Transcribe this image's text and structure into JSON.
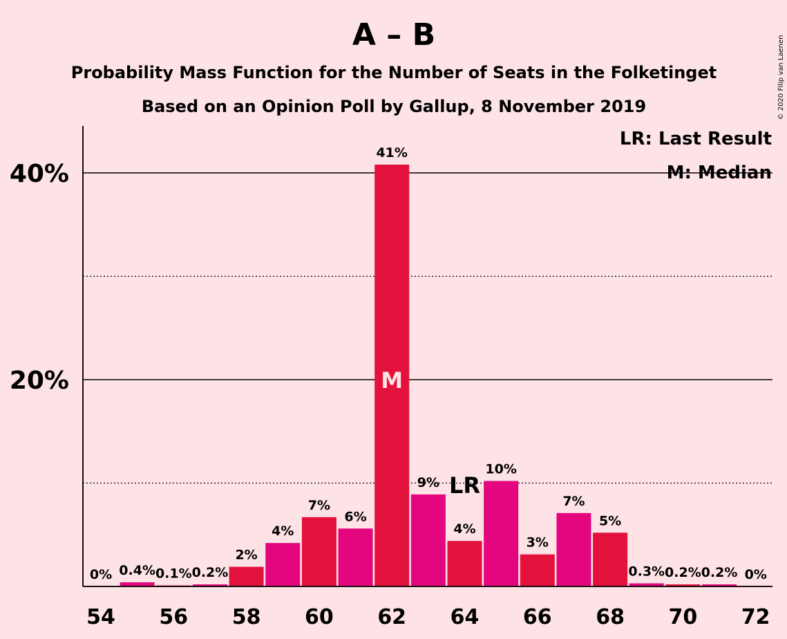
{
  "chart_data": {
    "type": "bar",
    "title": "A – B",
    "subtitle_line1": "Probability Mass Function for the Number of Seats in the Folketinget",
    "subtitle_line2": "Based on an Opinion Poll by Gallup, 8 November 2019",
    "copyright": "© 2020 Filip van Laenen",
    "legend": {
      "last_result": "LR: Last Result",
      "median": "M: Median",
      "placement": "top-right"
    },
    "x": [
      54,
      55,
      56,
      57,
      58,
      59,
      60,
      61,
      62,
      63,
      64,
      65,
      66,
      67,
      68,
      69,
      70,
      71,
      72
    ],
    "values": [
      0,
      0.4,
      0.1,
      0.2,
      1.9,
      4.2,
      6.7,
      5.6,
      40.8,
      8.9,
      4.4,
      10.2,
      3.1,
      7.1,
      5.2,
      0.3,
      0.2,
      0.2,
      0
    ],
    "data_labels": [
      "0%",
      "0.4%",
      "0.1%",
      "0.2%",
      "2%",
      "4%",
      "7%",
      "6%",
      "41%",
      "9%",
      "4%",
      "10%",
      "3%",
      "7%",
      "5%",
      "0.3%",
      "0.2%",
      "0.2%",
      "0%"
    ],
    "x_tick_labels": [
      "54",
      "56",
      "58",
      "60",
      "62",
      "64",
      "66",
      "68",
      "70",
      "72"
    ],
    "x_tick_values": [
      54,
      56,
      58,
      60,
      62,
      64,
      66,
      68,
      70,
      72
    ],
    "y_tick_labels": [
      "20%",
      "40%"
    ],
    "y_tick_values": [
      20,
      40
    ],
    "y_minor_gridlines": [
      10,
      30
    ],
    "ylim": [
      0,
      44.5
    ],
    "median_seat": 62,
    "median_marker": "M",
    "last_result_seat": 64,
    "last_result_marker": "LR",
    "colors": {
      "background": "#FDE2E6",
      "bar_even": "#E3123C",
      "bar_odd": "#E4067E",
      "text": "#1a0d10",
      "gridline": "#000000"
    }
  }
}
